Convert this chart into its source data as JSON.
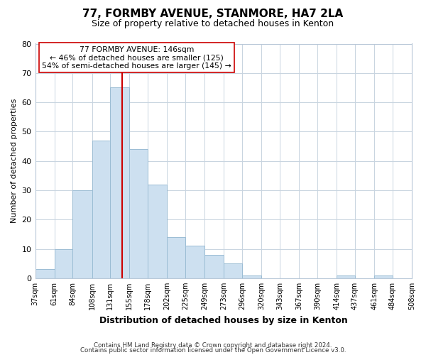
{
  "title": "77, FORMBY AVENUE, STANMORE, HA7 2LA",
  "subtitle": "Size of property relative to detached houses in Kenton",
  "xlabel": "Distribution of detached houses by size in Kenton",
  "ylabel": "Number of detached properties",
  "bar_color": "#cde0f0",
  "bar_edgecolor": "#9bbdd4",
  "vline_x": 146,
  "vline_color": "#cc0000",
  "annotation_lines": [
    "77 FORMBY AVENUE: 146sqm",
    "← 46% of detached houses are smaller (125)",
    "54% of semi-detached houses are larger (145) →"
  ],
  "bin_edges": [
    37,
    61,
    84,
    108,
    131,
    155,
    178,
    202,
    225,
    249,
    273,
    296,
    320,
    343,
    367,
    390,
    414,
    437,
    461,
    484,
    508
  ],
  "bin_counts": [
    3,
    10,
    30,
    47,
    65,
    44,
    32,
    14,
    11,
    8,
    5,
    1,
    0,
    0,
    0,
    0,
    1,
    0,
    1,
    0
  ],
  "ylim": [
    0,
    80
  ],
  "yticks": [
    0,
    10,
    20,
    30,
    40,
    50,
    60,
    70,
    80
  ],
  "footer_line1": "Contains HM Land Registry data © Crown copyright and database right 2024.",
  "footer_line2": "Contains public sector information licensed under the Open Government Licence v3.0.",
  "bg_color": "#ffffff",
  "plot_bg_color": "#ffffff",
  "grid_color": "#c8d4e0"
}
